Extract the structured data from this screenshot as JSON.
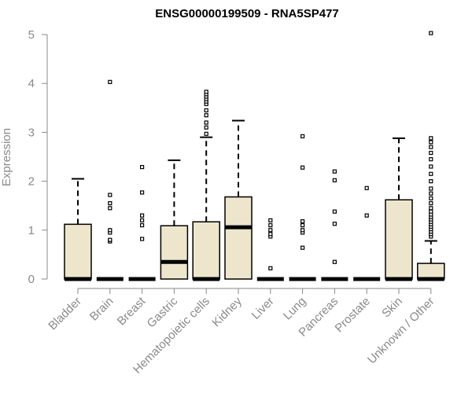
{
  "chart_data": {
    "type": "boxplot",
    "title": "ENSG00000199509 - RNA5SP477",
    "ylabel": "Expression",
    "ylim": [
      0,
      5
    ],
    "yticks": [
      "0",
      "1",
      "2",
      "3",
      "4",
      "5"
    ],
    "grid": false,
    "colors": {
      "box_fill": "#ede6cc",
      "box_stroke": "#000000",
      "axis": "#8a8a8a"
    },
    "categories": [
      "Bladder",
      "Brain",
      "Breast",
      "Gastric",
      "Hematopoietic cells",
      "Kidney",
      "Liver",
      "Lung",
      "Pancreas",
      "Prostate",
      "Skin",
      "Unknown / Other"
    ],
    "boxes": [
      {
        "q1": 0,
        "median": 0,
        "q3": 1.12,
        "whisker_low": 0,
        "whisker_high": 2.05,
        "outliers": []
      },
      {
        "q1": 0,
        "median": 0,
        "q3": 0,
        "whisker_low": 0,
        "whisker_high": 0,
        "outliers": [
          0.77,
          0.8,
          0.95,
          1.0,
          1.45,
          1.55,
          1.72,
          4.03
        ]
      },
      {
        "q1": 0,
        "median": 0,
        "q3": 0,
        "whisker_low": 0,
        "whisker_high": 0,
        "outliers": [
          0.82,
          1.1,
          1.2,
          1.3,
          1.77,
          2.29
        ]
      },
      {
        "q1": 0,
        "median": 0.35,
        "q3": 1.09,
        "whisker_low": 0,
        "whisker_high": 2.43,
        "outliers": []
      },
      {
        "q1": 0,
        "median": 0,
        "q3": 1.17,
        "whisker_low": 0,
        "whisker_high": 2.9,
        "outliers": [
          2.97,
          3.1,
          3.2,
          3.35,
          3.45,
          3.58,
          3.63,
          3.68,
          3.73,
          3.78,
          3.83
        ]
      },
      {
        "q1": 0,
        "median": 1.06,
        "q3": 1.68,
        "whisker_low": 0,
        "whisker_high": 3.24,
        "outliers": []
      },
      {
        "q1": 0,
        "median": 0,
        "q3": 0,
        "whisker_low": 0,
        "whisker_high": 0,
        "outliers": [
          0.22,
          0.87,
          0.92,
          1.0,
          1.1,
          1.2
        ]
      },
      {
        "q1": 0,
        "median": 0,
        "q3": 0,
        "whisker_low": 0,
        "whisker_high": 0,
        "outliers": [
          0.64,
          0.95,
          1.0,
          1.1,
          1.18,
          2.28,
          2.92
        ]
      },
      {
        "q1": 0,
        "median": 0,
        "q3": 0,
        "whisker_low": 0,
        "whisker_high": 0,
        "outliers": [
          0.35,
          1.13,
          1.38,
          2.02,
          2.2
        ]
      },
      {
        "q1": 0,
        "median": 0,
        "q3": 0,
        "whisker_low": 0,
        "whisker_high": 0,
        "outliers": [
          1.3,
          1.86
        ]
      },
      {
        "q1": 0,
        "median": 0,
        "q3": 1.62,
        "whisker_low": 0,
        "whisker_high": 2.88,
        "outliers": []
      },
      {
        "q1": 0,
        "median": 0,
        "q3": 0.32,
        "whisker_low": 0,
        "whisker_high": 0.78,
        "outliers": [
          0.87,
          0.92,
          0.97,
          1.02,
          1.07,
          1.12,
          1.17,
          1.22,
          1.27,
          1.32,
          1.38,
          1.45,
          1.55,
          1.65,
          1.75,
          1.85,
          2.0,
          2.15,
          2.3,
          2.45,
          2.58,
          2.7,
          2.8,
          2.88,
          5.03
        ]
      }
    ]
  }
}
